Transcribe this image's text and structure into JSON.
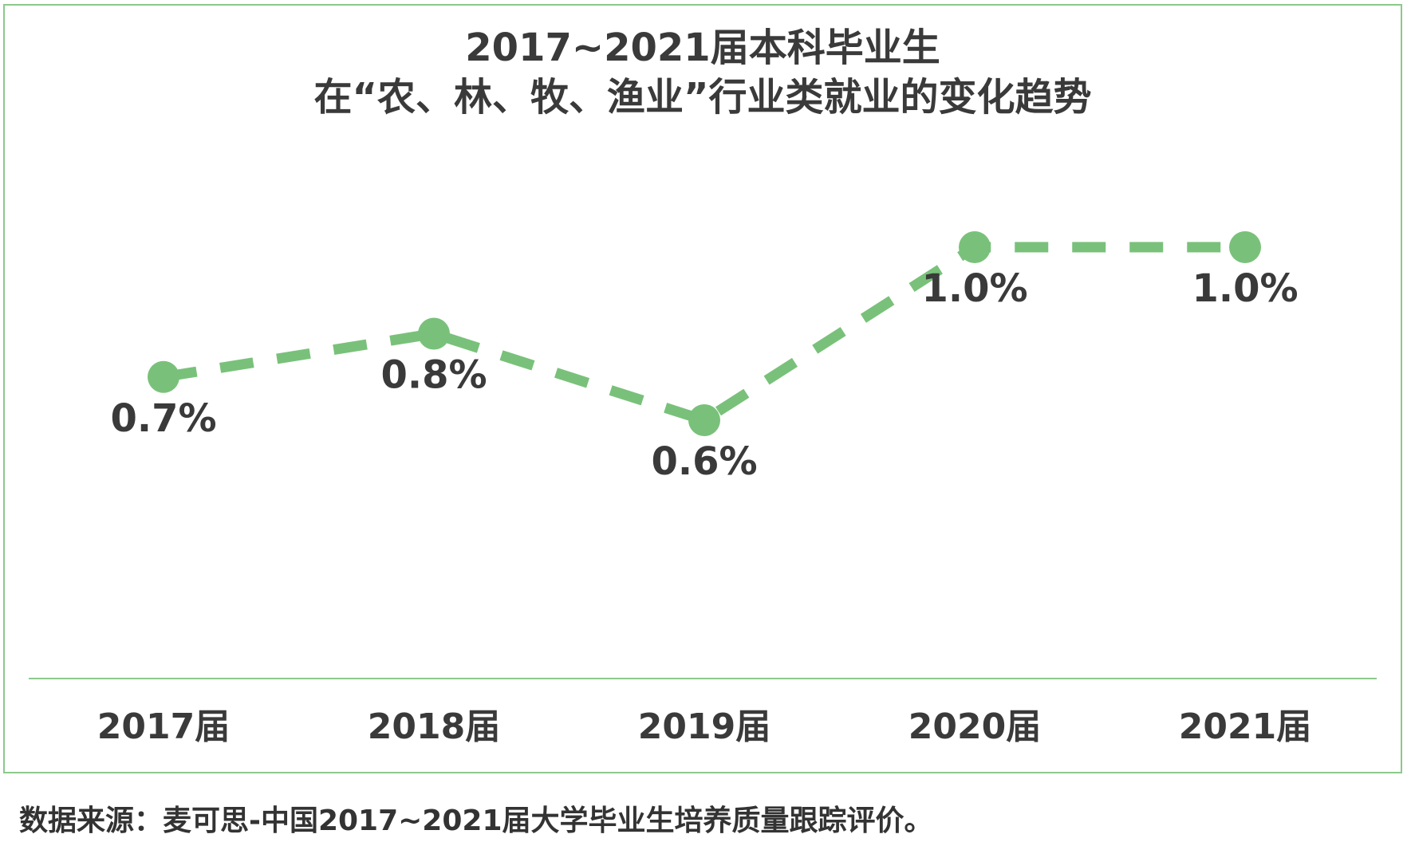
{
  "chart_data": {
    "type": "line",
    "title_lines": [
      "2017~2021届本科毕业生",
      "在“农、林、牧、渔业”行业类就业的变化趋势"
    ],
    "categories": [
      "2017届",
      "2018届",
      "2019届",
      "2020届",
      "2021届"
    ],
    "series": [
      {
        "values": [
          0.7,
          0.8,
          0.6,
          1.0,
          1.0
        ],
        "labels": [
          "0.7%",
          "0.8%",
          "0.6%",
          "1.0%",
          "1.0%"
        ],
        "color": "#79c17a",
        "line_style": "dashed"
      }
    ],
    "ylim": [
      0,
      1.0
    ],
    "grid": false,
    "legend": "none",
    "axis_color": "#8cc98b"
  },
  "footer": {
    "source": "数据来源：麦可思-中国2017~2021届大学毕业生培养质量跟踪评价。"
  }
}
